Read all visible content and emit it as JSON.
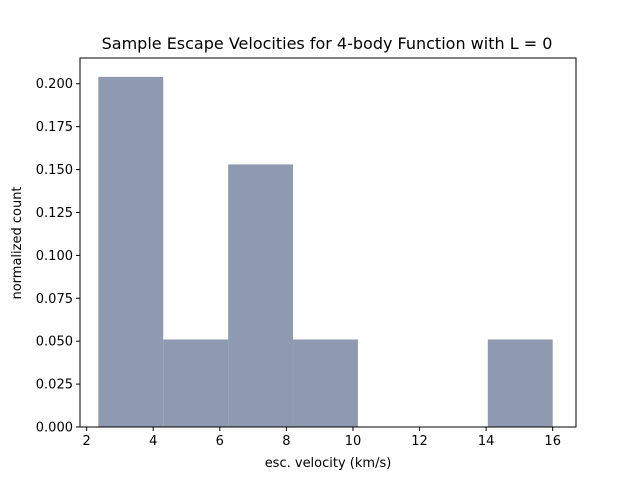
{
  "chart_data": {
    "type": "bar",
    "title": "Sample Escape Velocities for 4-body Function with L = 0",
    "xlabel": "esc. velocity (km/s)",
    "ylabel": "normalized count",
    "xlim": [
      1.8,
      16.7
    ],
    "ylim": [
      0,
      0.215
    ],
    "x_ticks": [
      2,
      4,
      6,
      8,
      10,
      12,
      14,
      16
    ],
    "y_ticks": [
      0.0,
      0.025,
      0.05,
      0.075,
      0.1,
      0.125,
      0.15,
      0.175,
      0.2
    ],
    "x_tick_labels": [
      "2",
      "4",
      "6",
      "8",
      "10",
      "12",
      "14",
      "16"
    ],
    "y_tick_labels": [
      "0.000",
      "0.025",
      "0.050",
      "0.075",
      "0.100",
      "0.125",
      "0.150",
      "0.175",
      "0.200"
    ],
    "bar_color": "#8e9aaf",
    "bins": [
      {
        "x0": 2.35,
        "x1": 4.3,
        "value": 0.204
      },
      {
        "x0": 4.3,
        "x1": 6.25,
        "value": 0.051
      },
      {
        "x0": 6.25,
        "x1": 8.2,
        "value": 0.153
      },
      {
        "x0": 8.2,
        "x1": 10.15,
        "value": 0.051
      },
      {
        "x0": 10.15,
        "x1": 12.1,
        "value": 0.0
      },
      {
        "x0": 12.1,
        "x1": 14.05,
        "value": 0.0
      },
      {
        "x0": 14.05,
        "x1": 16.0,
        "value": 0.051
      }
    ],
    "grid": false,
    "legend": "none"
  }
}
